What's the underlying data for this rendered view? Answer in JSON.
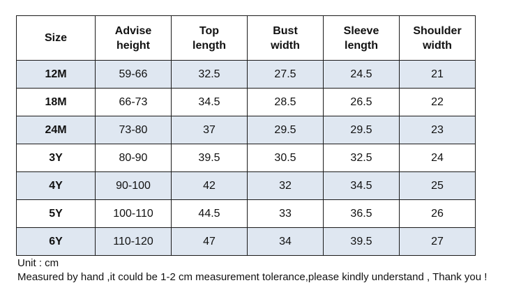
{
  "table": {
    "headers": [
      {
        "line1": "Size",
        "line2": ""
      },
      {
        "line1": "Advise",
        "line2": "height"
      },
      {
        "line1": "Top",
        "line2": "length"
      },
      {
        "line1": "Bust",
        "line2": "width"
      },
      {
        "line1": "Sleeve",
        "line2": "length"
      },
      {
        "line1": "Shoulder",
        "line2": "width"
      }
    ],
    "rows": [
      {
        "size": "12M",
        "advise_height": "59-66",
        "top_length": "32.5",
        "bust_width": "27.5",
        "sleeve_length": "24.5",
        "shoulder_width": "21"
      },
      {
        "size": "18M",
        "advise_height": "66-73",
        "top_length": "34.5",
        "bust_width": "28.5",
        "sleeve_length": "26.5",
        "shoulder_width": "22"
      },
      {
        "size": "24M",
        "advise_height": "73-80",
        "top_length": "37",
        "bust_width": "29.5",
        "sleeve_length": "29.5",
        "shoulder_width": "23"
      },
      {
        "size": "3Y",
        "advise_height": "80-90",
        "top_length": "39.5",
        "bust_width": "30.5",
        "sleeve_length": "32.5",
        "shoulder_width": "24"
      },
      {
        "size": "4Y",
        "advise_height": "90-100",
        "top_length": "42",
        "bust_width": "32",
        "sleeve_length": "34.5",
        "shoulder_width": "25"
      },
      {
        "size": "5Y",
        "advise_height": "100-110",
        "top_length": "44.5",
        "bust_width": "33",
        "sleeve_length": "36.5",
        "shoulder_width": "26"
      },
      {
        "size": "6Y",
        "advise_height": "110-120",
        "top_length": "47",
        "bust_width": "34",
        "sleeve_length": "39.5",
        "shoulder_width": "27"
      }
    ],
    "shaded_row_color": "#dfe7f1",
    "border_color": "#1a1a1a"
  },
  "notes": {
    "unit": "Unit : cm",
    "disclaimer": "Measured by hand ,it could be 1-2 cm measurement tolerance,please kindly understand , Thank you !"
  }
}
